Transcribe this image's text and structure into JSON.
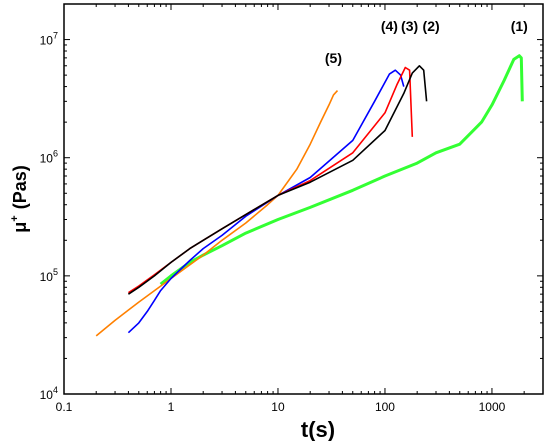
{
  "chart_data": {
    "type": "line",
    "xlabel": "t(s)",
    "ylabel_main": "μ",
    "ylabel_sup": "+",
    "ylabel_unit": "(Pas)",
    "xscale": "log",
    "yscale": "log",
    "xlim": [
      0.1,
      3000
    ],
    "ylim": [
      10000,
      20000000
    ],
    "x_ticks": [
      {
        "value": 0.1,
        "label": "0.1"
      },
      {
        "value": 1,
        "label": "1"
      },
      {
        "value": 10,
        "label": "10"
      },
      {
        "value": 100,
        "label": "100"
      },
      {
        "value": 1000,
        "label": "1000"
      }
    ],
    "y_ticks": [
      {
        "value": 10000,
        "base": "10",
        "exp": "4"
      },
      {
        "value": 100000,
        "base": "10",
        "exp": "5"
      },
      {
        "value": 1000000,
        "base": "10",
        "exp": "6"
      },
      {
        "value": 10000000,
        "base": "10",
        "exp": "7"
      }
    ],
    "grid": false,
    "series": [
      {
        "label": "(1)",
        "color": "#33ff33",
        "label_anchor": [
          1800,
          13000000
        ],
        "points": [
          [
            0.8,
            85000
          ],
          [
            1,
            100000
          ],
          [
            1.5,
            130000
          ],
          [
            2,
            150000
          ],
          [
            3,
            180000
          ],
          [
            5,
            230000
          ],
          [
            10,
            300000
          ],
          [
            20,
            380000
          ],
          [
            50,
            530000
          ],
          [
            100,
            700000
          ],
          [
            200,
            900000
          ],
          [
            300,
            1100000
          ],
          [
            500,
            1300000
          ],
          [
            800,
            2000000
          ],
          [
            1000,
            2800000
          ],
          [
            1300,
            4500000
          ],
          [
            1600,
            6800000
          ],
          [
            1800,
            7300000
          ],
          [
            1880,
            7000000
          ],
          [
            1920,
            3000000
          ]
        ]
      },
      {
        "label": "(2)",
        "color": "#000000",
        "label_anchor": [
          270,
          13000000
        ],
        "points": [
          [
            0.4,
            70000
          ],
          [
            0.5,
            80000
          ],
          [
            0.7,
            100000
          ],
          [
            1,
            130000
          ],
          [
            1.5,
            170000
          ],
          [
            2,
            200000
          ],
          [
            3,
            250000
          ],
          [
            5,
            330000
          ],
          [
            10,
            480000
          ],
          [
            20,
            620000
          ],
          [
            50,
            950000
          ],
          [
            100,
            1700000
          ],
          [
            150,
            3500000
          ],
          [
            180,
            5200000
          ],
          [
            210,
            6000000
          ],
          [
            230,
            5500000
          ],
          [
            245,
            3000000
          ]
        ]
      },
      {
        "label": "(3)",
        "color": "#ff0000",
        "label_anchor": [
          170,
          13000000
        ],
        "points": [
          [
            0.4,
            72000
          ],
          [
            0.5,
            82000
          ],
          [
            0.7,
            102000
          ],
          [
            1,
            130000
          ],
          [
            1.5,
            170000
          ],
          [
            2,
            200000
          ],
          [
            3,
            250000
          ],
          [
            5,
            330000
          ],
          [
            10,
            480000
          ],
          [
            20,
            640000
          ],
          [
            50,
            1100000
          ],
          [
            100,
            2400000
          ],
          [
            130,
            4200000
          ],
          [
            155,
            5800000
          ],
          [
            170,
            5500000
          ],
          [
            180,
            1500000
          ]
        ]
      },
      {
        "label": "(4)",
        "color": "#0000ff",
        "label_anchor": [
          110,
          13000000
        ],
        "points": [
          [
            0.4,
            33000
          ],
          [
            0.5,
            40000
          ],
          [
            0.6,
            50000
          ],
          [
            0.7,
            62000
          ],
          [
            0.8,
            75000
          ],
          [
            1,
            95000
          ],
          [
            1.5,
            135000
          ],
          [
            2,
            170000
          ],
          [
            3,
            220000
          ],
          [
            5,
            320000
          ],
          [
            10,
            480000
          ],
          [
            20,
            680000
          ],
          [
            50,
            1400000
          ],
          [
            80,
            3000000
          ],
          [
            110,
            5100000
          ],
          [
            125,
            5500000
          ],
          [
            140,
            5000000
          ],
          [
            150,
            4000000
          ]
        ]
      },
      {
        "label": "(5)",
        "color": "#ff8000",
        "label_anchor": [
          33,
          7000000
        ],
        "points": [
          [
            0.2,
            31000
          ],
          [
            0.3,
            42000
          ],
          [
            0.5,
            60000
          ],
          [
            1,
            95000
          ],
          [
            2,
            150000
          ],
          [
            3,
            200000
          ],
          [
            5,
            280000
          ],
          [
            8,
            400000
          ],
          [
            10,
            480000
          ],
          [
            15,
            800000
          ],
          [
            20,
            1300000
          ],
          [
            25,
            2000000
          ],
          [
            30,
            2800000
          ],
          [
            33,
            3400000
          ],
          [
            36,
            3700000
          ]
        ]
      }
    ]
  }
}
